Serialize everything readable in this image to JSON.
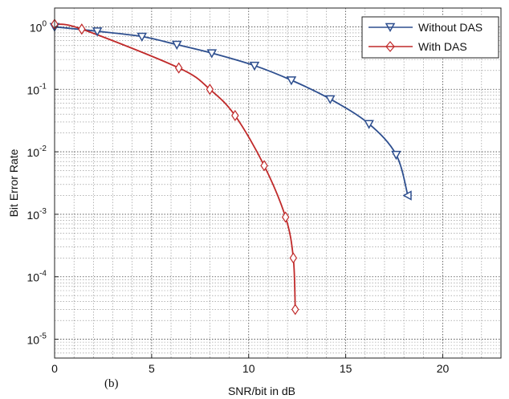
{
  "chart_data": {
    "type": "line",
    "title": "",
    "xlabel": "SNR/bit in dB",
    "ylabel": "Bit Error Rate",
    "xlim": [
      0,
      23
    ],
    "ylim": [
      5e-06,
      2
    ],
    "yscale": "log",
    "grid": true,
    "legend_position": "top-right",
    "panel_label": "(b)",
    "x_ticks": [
      {
        "value": 0,
        "label": "0"
      },
      {
        "value": 5,
        "label": "5"
      },
      {
        "value": 10,
        "label": "10"
      },
      {
        "value": 15,
        "label": "15"
      },
      {
        "value": 20,
        "label": "20"
      }
    ],
    "y_ticks": [
      {
        "value": 1,
        "base": "10",
        "exp": "0"
      },
      {
        "value": 0.1,
        "base": "10",
        "exp": "-1"
      },
      {
        "value": 0.01,
        "base": "10",
        "exp": "-2"
      },
      {
        "value": 0.001,
        "base": "10",
        "exp": "-3"
      },
      {
        "value": 0.0001,
        "base": "10",
        "exp": "-4"
      },
      {
        "value": 1e-05,
        "base": "10",
        "exp": "-5"
      }
    ],
    "series": [
      {
        "name": "Without DAS",
        "color": "#2e4f8f",
        "marker": "triangle-down",
        "x": [
          0,
          2.2,
          4.5,
          6.3,
          8.1,
          10.3,
          12.2,
          14.2,
          16.2,
          17.6,
          18.2
        ],
        "y": [
          1.0,
          0.85,
          0.7,
          0.52,
          0.38,
          0.24,
          0.14,
          0.07,
          0.028,
          0.009,
          0.002
        ]
      },
      {
        "name": "With DAS",
        "color": "#c02a2a",
        "marker": "diamond",
        "x": [
          0,
          1.4,
          6.4,
          8.0,
          9.3,
          10.8,
          11.9,
          12.3,
          12.4
        ],
        "y": [
          1.1,
          0.92,
          0.22,
          0.1,
          0.038,
          0.006,
          0.0009,
          0.0002,
          3e-05
        ]
      }
    ]
  }
}
